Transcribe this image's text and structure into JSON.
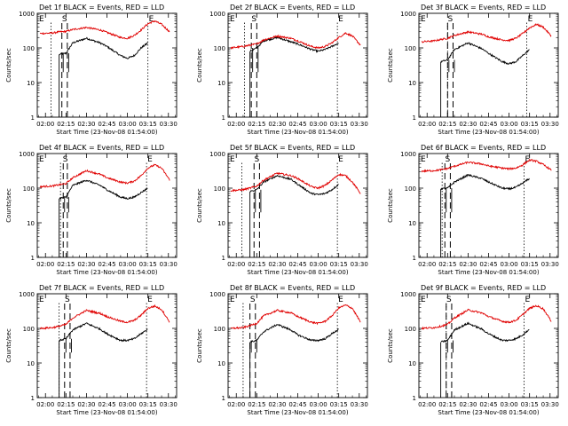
{
  "figure": {
    "ytick_labels": [
      "1",
      "10",
      "100",
      "1000"
    ],
    "xtick_labels": [
      "02:00",
      "02:15",
      "02:30",
      "02:45",
      "03:00",
      "03:15",
      "03:30"
    ],
    "marker_labels": {
      "start": "E",
      "dashes": "S",
      "end": "E"
    },
    "colors": {
      "events": "#000000",
      "lld": "#e00000",
      "axes": "#000000"
    }
  },
  "chart_data": [
    {
      "type": "line",
      "title": "Det 1f BLACK = Events, RED = LLD",
      "xlabel": "Start Time (23-Nov-08 01:54:00)",
      "ylabel": "Counts/sec",
      "ylim": [
        1,
        1000
      ],
      "yscale": "log",
      "xlim": [
        "01:54",
        "03:36"
      ],
      "x": [
        "01:56",
        "02:05",
        "02:10",
        "02:15",
        "02:20",
        "02:30",
        "02:40",
        "02:45",
        "02:55",
        "03:00",
        "03:05",
        "03:10",
        "03:15",
        "03:20",
        "03:25",
        "03:31"
      ],
      "series": [
        {
          "name": "BLACK = Events",
          "values": [
            null,
            null,
            65,
            70,
            140,
            190,
            140,
            110,
            60,
            50,
            60,
            100,
            140,
            null,
            null,
            null
          ]
        },
        {
          "name": "RED = LLD",
          "values": [
            260,
            270,
            290,
            300,
            340,
            390,
            330,
            280,
            200,
            190,
            230,
            330,
            500,
            600,
            480,
            290
          ]
        }
      ],
      "markers": {
        "start": "02:04",
        "dash1": "02:12",
        "dash2": "02:16",
        "end": "03:15"
      },
      "grid": false
    },
    {
      "type": "line",
      "title": "Det 2f BLACK = Events, RED = LLD",
      "xlabel": "Start Time (23-Nov-08 01:54:00)",
      "ylabel": "Counts/sec",
      "ylim": [
        1,
        1000
      ],
      "yscale": "log",
      "xlim": [
        "01:54",
        "03:36"
      ],
      "x": [
        "01:56",
        "02:05",
        "02:10",
        "02:15",
        "02:20",
        "02:30",
        "02:40",
        "02:45",
        "02:55",
        "03:00",
        "03:05",
        "03:10",
        "03:15",
        "03:20",
        "03:25",
        "03:31"
      ],
      "series": [
        {
          "name": "BLACK = Events",
          "values": [
            null,
            null,
            80,
            100,
            160,
            200,
            150,
            130,
            90,
            80,
            90,
            110,
            140,
            null,
            null,
            null
          ]
        },
        {
          "name": "RED = LLD",
          "values": [
            100,
            110,
            120,
            130,
            170,
            220,
            190,
            160,
            110,
            100,
            110,
            140,
            200,
            270,
            220,
            120
          ]
        }
      ],
      "markers": {
        "start": "02:06",
        "dash1": "02:11",
        "dash2": "02:15",
        "end": "03:14"
      },
      "grid": false
    },
    {
      "type": "line",
      "title": "Det 3f BLACK = Events, RED = LLD",
      "xlabel": "Start Time (23-Nov-08 01:54:00)",
      "ylabel": "Counts/sec",
      "ylim": [
        1,
        1000
      ],
      "yscale": "log",
      "xlim": [
        "01:54",
        "03:36"
      ],
      "x": [
        "01:56",
        "02:05",
        "02:10",
        "02:15",
        "02:20",
        "02:30",
        "02:40",
        "02:45",
        "02:55",
        "03:00",
        "03:05",
        "03:10",
        "03:15",
        "03:20",
        "03:25",
        "03:31"
      ],
      "series": [
        {
          "name": "BLACK = Events",
          "values": [
            null,
            null,
            40,
            45,
            90,
            140,
            95,
            70,
            40,
            35,
            40,
            60,
            90,
            null,
            null,
            null
          ]
        },
        {
          "name": "RED = LLD",
          "values": [
            150,
            160,
            175,
            190,
            230,
            290,
            250,
            210,
            170,
            165,
            190,
            260,
            380,
            480,
            400,
            220
          ]
        }
      ],
      "markers": {
        "start": "02:15",
        "dash1": "02:15",
        "dash2": "02:19",
        "end": "03:13"
      },
      "grid": false
    },
    {
      "type": "line",
      "title": "Det 4f BLACK = Events, RED = LLD",
      "xlabel": "Start Time (23-Nov-08 01:54:00)",
      "ylabel": "Counts/sec",
      "ylim": [
        1,
        1000
      ],
      "yscale": "log",
      "xlim": [
        "01:54",
        "03:36"
      ],
      "x": [
        "01:56",
        "02:05",
        "02:10",
        "02:15",
        "02:20",
        "02:30",
        "02:40",
        "02:45",
        "02:55",
        "03:00",
        "03:05",
        "03:10",
        "03:15",
        "03:20",
        "03:25",
        "03:31"
      ],
      "series": [
        {
          "name": "BLACK = Events",
          "values": [
            null,
            null,
            50,
            55,
            120,
            170,
            120,
            90,
            55,
            50,
            55,
            75,
            100,
            null,
            null,
            null
          ]
        },
        {
          "name": "RED = LLD",
          "values": [
            110,
            115,
            125,
            135,
            200,
            320,
            250,
            200,
            150,
            140,
            160,
            230,
            380,
            470,
            380,
            170
          ]
        }
      ],
      "markers": {
        "start": "02:11",
        "dash1": "02:13",
        "dash2": "02:16",
        "end": "03:14"
      },
      "grid": false
    },
    {
      "type": "line",
      "title": "Det 5f BLACK = Events, RED = LLD",
      "xlabel": "Start Time (23-Nov-08 01:54:00)",
      "ylabel": "Counts/sec",
      "ylim": [
        1,
        1000
      ],
      "yscale": "log",
      "xlim": [
        "01:54",
        "03:36"
      ],
      "x": [
        "01:56",
        "02:05",
        "02:10",
        "02:15",
        "02:20",
        "02:30",
        "02:40",
        "02:45",
        "02:55",
        "03:00",
        "03:05",
        "03:10",
        "03:15",
        "03:20",
        "03:25",
        "03:31"
      ],
      "series": [
        {
          "name": "BLACK = Events",
          "values": [
            null,
            null,
            80,
            90,
            150,
            230,
            180,
            130,
            70,
            65,
            70,
            90,
            130,
            null,
            null,
            null
          ]
        },
        {
          "name": "RED = LLD",
          "values": [
            85,
            90,
            100,
            115,
            170,
            270,
            230,
            190,
            110,
            100,
            120,
            170,
            250,
            230,
            150,
            70
          ]
        }
      ],
      "markers": {
        "start": "02:04",
        "dash1": "02:13",
        "dash2": "02:17",
        "end": "03:14"
      },
      "grid": false
    },
    {
      "type": "line",
      "title": "Det 6f BLACK = Events, RED = LLD",
      "xlabel": "Start Time (23-Nov-08 01:54:00)",
      "ylabel": "Counts/sec",
      "ylim": [
        1,
        1000
      ],
      "yscale": "log",
      "xlim": [
        "01:54",
        "03:36"
      ],
      "x": [
        "01:56",
        "02:05",
        "02:10",
        "02:15",
        "02:20",
        "02:30",
        "02:40",
        "02:45",
        "02:55",
        "03:00",
        "03:05",
        "03:10",
        "03:15",
        "03:20",
        "03:25",
        "03:31"
      ],
      "series": [
        {
          "name": "BLACK = Events",
          "values": [
            null,
            null,
            95,
            100,
            150,
            240,
            190,
            150,
            100,
            95,
            105,
            140,
            190,
            null,
            null,
            null
          ]
        },
        {
          "name": "RED = LLD",
          "values": [
            310,
            320,
            340,
            370,
            430,
            560,
            500,
            440,
            380,
            360,
            380,
            470,
            650,
            600,
            480,
            330
          ]
        }
      ],
      "markers": {
        "start": "02:11",
        "dash1": "02:13",
        "dash2": "02:17",
        "end": "03:11"
      },
      "grid": false
    },
    {
      "type": "line",
      "title": "Det 7f BLACK = Events, RED = LLD",
      "xlabel": "Start Time (23-Nov-08 01:54:00)",
      "ylabel": "Counts/sec",
      "ylim": [
        1,
        1000
      ],
      "yscale": "log",
      "xlim": [
        "01:54",
        "03:36"
      ],
      "x": [
        "01:56",
        "02:05",
        "02:10",
        "02:15",
        "02:20",
        "02:30",
        "02:40",
        "02:45",
        "02:55",
        "03:00",
        "03:05",
        "03:10",
        "03:15",
        "03:20",
        "03:25",
        "03:31"
      ],
      "series": [
        {
          "name": "BLACK = Events",
          "values": [
            null,
            null,
            45,
            50,
            90,
            140,
            95,
            70,
            45,
            45,
            50,
            70,
            95,
            null,
            null,
            null
          ]
        },
        {
          "name": "RED = LLD",
          "values": [
            100,
            105,
            115,
            130,
            200,
            330,
            270,
            220,
            160,
            150,
            170,
            240,
            380,
            440,
            350,
            150
          ]
        }
      ],
      "markers": {
        "start": "02:10",
        "dash1": "02:14",
        "dash2": "02:18",
        "end": "03:14"
      },
      "grid": false
    },
    {
      "type": "line",
      "title": "Det 8f BLACK = Events, RED = LLD",
      "xlabel": "Start Time (23-Nov-08 01:54:00)",
      "ylabel": "Counts/sec",
      "ylim": [
        1,
        1000
      ],
      "yscale": "log",
      "xlim": [
        "01:54",
        "03:36"
      ],
      "x": [
        "01:56",
        "02:05",
        "02:10",
        "02:15",
        "02:20",
        "02:30",
        "02:40",
        "02:45",
        "02:55",
        "03:00",
        "03:05",
        "03:10",
        "03:15",
        "03:20",
        "03:25",
        "03:31"
      ],
      "series": [
        {
          "name": "BLACK = Events",
          "values": [
            null,
            null,
            40,
            45,
            80,
            130,
            90,
            65,
            45,
            45,
            50,
            70,
            95,
            null,
            null,
            null
          ]
        },
        {
          "name": "RED = LLD",
          "values": [
            100,
            105,
            120,
            140,
            230,
            330,
            280,
            220,
            150,
            140,
            160,
            230,
            390,
            470,
            380,
            150
          ]
        }
      ],
      "markers": {
        "start": "02:05",
        "dash1": "02:10",
        "dash2": "02:14",
        "end": "03:14"
      },
      "grid": false
    },
    {
      "type": "line",
      "title": "Det 9f BLACK = Events, RED = LLD",
      "xlabel": "Start Time (23-Nov-08 01:54:00)",
      "ylabel": "Counts/sec",
      "ylim": [
        1,
        1000
      ],
      "yscale": "log",
      "xlim": [
        "01:54",
        "03:36"
      ],
      "x": [
        "01:56",
        "02:05",
        "02:10",
        "02:15",
        "02:20",
        "02:30",
        "02:40",
        "02:45",
        "02:55",
        "03:00",
        "03:05",
        "03:10",
        "03:15",
        "03:20",
        "03:25",
        "03:31"
      ],
      "series": [
        {
          "name": "BLACK = Events",
          "values": [
            null,
            null,
            40,
            45,
            90,
            140,
            95,
            70,
            45,
            45,
            50,
            65,
            95,
            null,
            null,
            null
          ]
        },
        {
          "name": "RED = LLD",
          "values": [
            100,
            105,
            115,
            130,
            200,
            340,
            280,
            220,
            160,
            150,
            170,
            250,
            380,
            450,
            370,
            160
          ]
        }
      ],
      "markers": {
        "start": "02:14",
        "dash1": "02:14",
        "dash2": "02:18",
        "end": "03:11"
      },
      "grid": false
    }
  ]
}
